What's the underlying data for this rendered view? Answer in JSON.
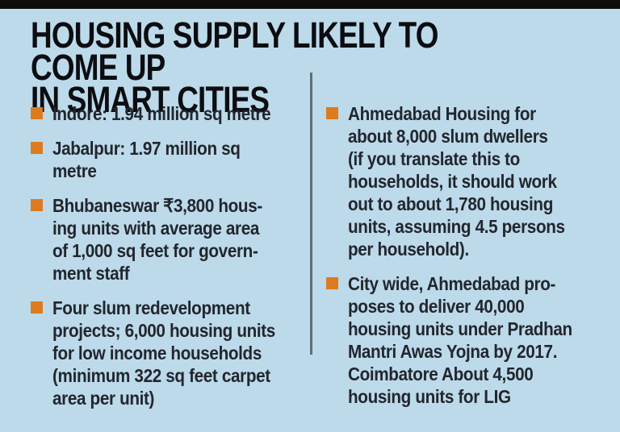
{
  "infographic": {
    "title": "HOUSING SUPPLY LIKELY TO COME UP\nIN SMART CITIES",
    "columns": {
      "left": {
        "items": [
          {
            "text": "Indore: 1.94 million sq metre"
          },
          {
            "text": "Jabalpur: 1.97 million sq\nmetre"
          },
          {
            "text": "Bhubaneswar ₹3,800 hous-\ning units with average area\nof 1,000 sq feet for govern-\nment staff"
          },
          {
            "text": "Four slum redevelopment\nprojects; 6,000 housing units\nfor low income households\n(minimum 322 sq feet carpet\narea per unit)"
          }
        ]
      },
      "right": {
        "items": [
          {
            "text": "Ahmedabad Housing for\nabout 8,000 slum dwellers\n(if you translate this to\nhouseholds, it should work\nout to about 1,780 housing\nunits, assuming 4.5 persons\nper household)."
          },
          {
            "text": "City wide, Ahmedabad pro-\nposes to deliver 40,000\nhousing units under Pradhan\nMantri Awas Yojna by 2017.\nCoimbatore About 4,500\nhousing units for LIG"
          }
        ]
      }
    },
    "colors": {
      "background": "#bcdaea",
      "top_bar": "#0d0d0d",
      "bullet": "#dc7b1f",
      "text": "#23262e",
      "divider": "#5c7078"
    }
  }
}
